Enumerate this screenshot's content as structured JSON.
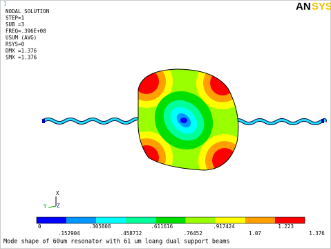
{
  "window_number": "1",
  "info": [
    "NODAL SOLUTION",
    "STEP=1",
    "SUB =3",
    "FREQ=.396E+08",
    "USUM      (AVG)",
    "RSYS=0",
    "DMX =1.376",
    "SMX =1.376"
  ],
  "logo": {
    "dark": "AN",
    "light": "SYS"
  },
  "triad": {
    "x": "X",
    "y": "Y",
    "z": "Z"
  },
  "legend": {
    "colors": [
      "#0000ff",
      "#0096ff",
      "#00ffff",
      "#00ff9a",
      "#00e000",
      "#9aff00",
      "#ffff00",
      "#ffa000",
      "#ff0000"
    ],
    "labels": [
      "0",
      ".152904",
      ".305808",
      ".458712",
      ".611616",
      ".76452",
      ".917424",
      "1.07",
      "1.223",
      "1.376"
    ]
  },
  "caption": "Mode shape of 60um resonator with 61 um loang dual support beams"
}
